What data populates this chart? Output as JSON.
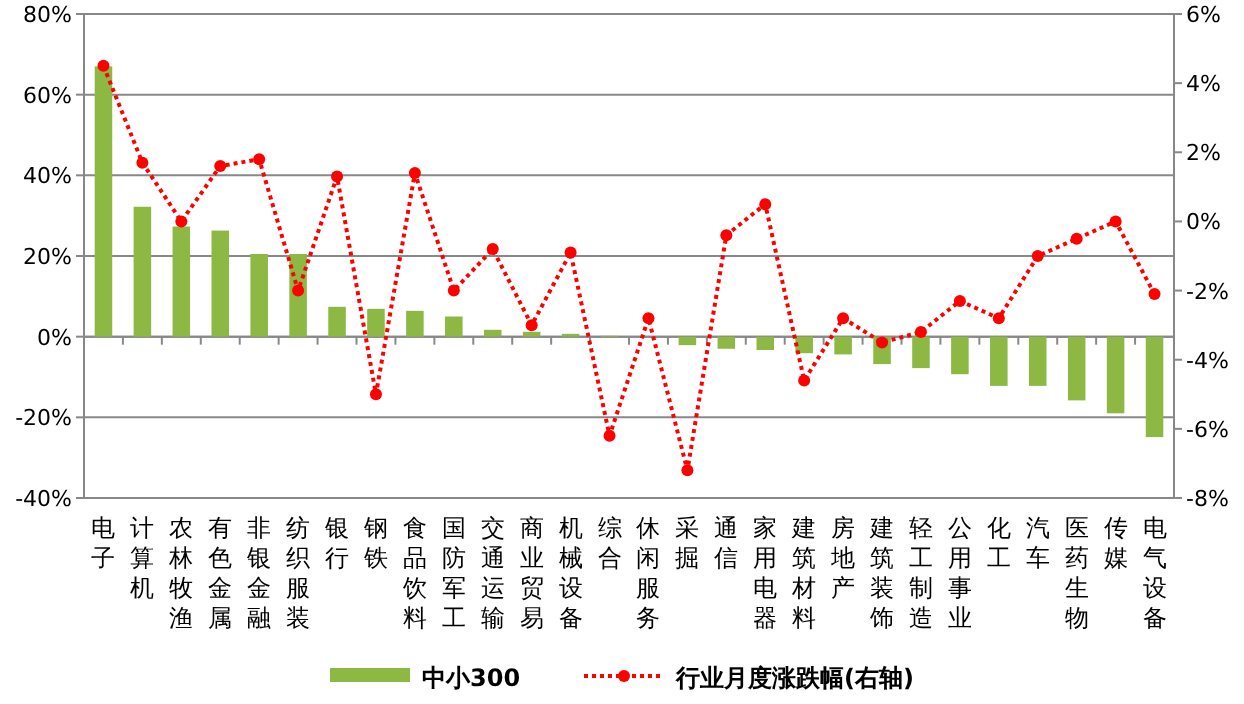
{
  "chart_data": {
    "type": "bar",
    "categories": [
      "电子",
      "计算机",
      "农林牧渔",
      "有色金属",
      "非银金融",
      "纺织服装",
      "银行",
      "钢铁",
      "食品饮料",
      "国防军工",
      "交通运输",
      "商业贸易",
      "机械设备",
      "综合",
      "休闲服务",
      "采掘",
      "通信",
      "家用电器",
      "建筑材料",
      "房地产",
      "建筑装饰",
      "轻工制造",
      "公用事业",
      "化工",
      "汽车",
      "医药生物",
      "传媒",
      "电气设备"
    ],
    "series": [
      {
        "name": "中小300",
        "type": "bar",
        "color": "#8db843",
        "values": [
          67,
          32.2,
          27.3,
          26.3,
          20.5,
          20.5,
          7.4,
          6.9,
          6.4,
          5.0,
          1.7,
          1.2,
          0.7,
          0.2,
          null,
          -2.1,
          -3.0,
          -3.3,
          -4.1,
          -4.4,
          -6.8,
          -7.8,
          -9.3,
          -12.2,
          -12.2,
          -15.8,
          -19.0,
          -24.9
        ]
      },
      {
        "name": "行业月度涨跌幅(右轴)",
        "type": "line",
        "axis": "y2",
        "color": "#ff0000",
        "line_style": "dotted",
        "marker": "circle",
        "values": [
          4.5,
          1.7,
          0.0,
          1.6,
          1.8,
          -2.0,
          1.3,
          -5.0,
          1.4,
          -2.0,
          -0.8,
          -3.0,
          -0.9,
          -6.2,
          -2.8,
          -7.2,
          -0.4,
          0.5,
          -4.6,
          -2.8,
          -3.5,
          -3.2,
          -2.3,
          -2.8,
          -1.0,
          -0.5,
          0.0,
          -2.1
        ]
      }
    ],
    "ylim": [
      -40,
      80
    ],
    "yticks": [
      {
        "value": -40,
        "label": "-40%"
      },
      {
        "value": -20,
        "label": "-20%"
      },
      {
        "value": 0,
        "label": "0%"
      },
      {
        "value": 20,
        "label": "20%"
      },
      {
        "value": 40,
        "label": "40%"
      },
      {
        "value": 60,
        "label": "60%"
      },
      {
        "value": 80,
        "label": "80%"
      }
    ],
    "y2lim": [
      -8,
      6
    ],
    "y2ticks": [
      {
        "value": -8,
        "label": "-8%"
      },
      {
        "value": -6,
        "label": "-6%"
      },
      {
        "value": -4,
        "label": "-4%"
      },
      {
        "value": -2,
        "label": "-2%"
      },
      {
        "value": 0,
        "label": "0%"
      },
      {
        "value": 2,
        "label": "2%"
      },
      {
        "value": 4,
        "label": "4%"
      },
      {
        "value": 6,
        "label": "6%"
      }
    ],
    "grid": "y",
    "legend": "bottom"
  }
}
